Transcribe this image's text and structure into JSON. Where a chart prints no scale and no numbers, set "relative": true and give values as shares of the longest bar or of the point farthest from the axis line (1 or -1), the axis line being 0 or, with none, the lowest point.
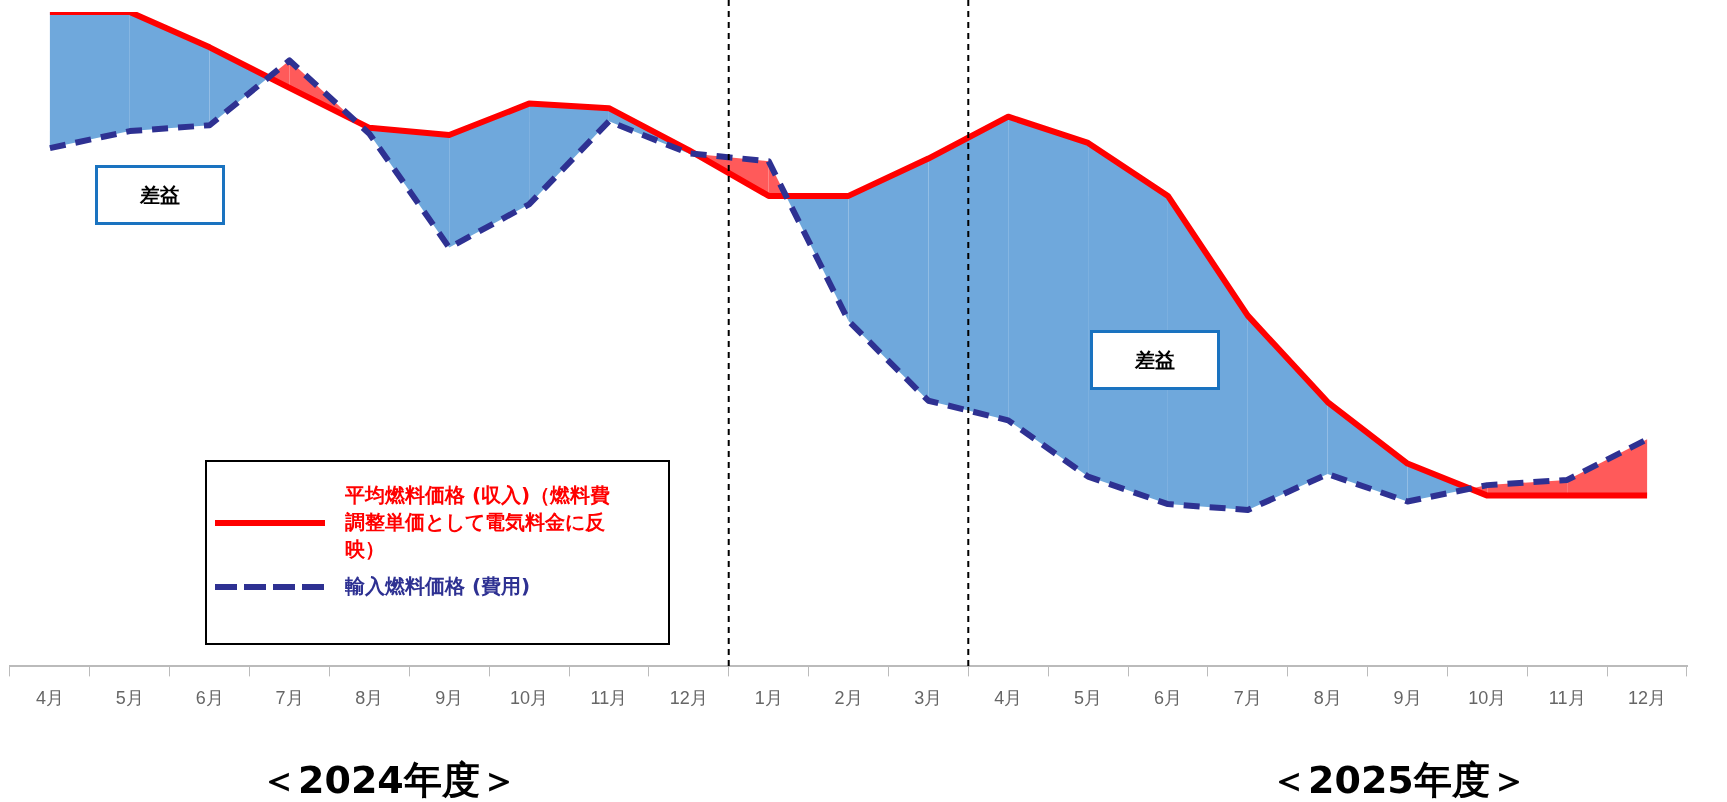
{
  "chart_data": {
    "type": "line",
    "relative": true,
    "categories": [
      "4月",
      "5月",
      "6月",
      "7月",
      "8月",
      "9月",
      "10月",
      "11月",
      "12月",
      "1月",
      "2月",
      "3月",
      "4月",
      "5月",
      "6月",
      "7月",
      "8月",
      "9月",
      "10月",
      "11月",
      "12月"
    ],
    "series": [
      {
        "name": "平均燃料価格 (収入)（燃料費調整単価として電気料金に反映）",
        "color": "#ff0000",
        "line_style": "solid",
        "values": [
          1.0,
          1.0,
          0.946,
          0.884,
          0.823,
          0.812,
          0.86,
          0.853,
          0.789,
          0.719,
          0.719,
          0.776,
          0.84,
          0.8,
          0.719,
          0.536,
          0.404,
          0.31,
          0.261,
          0.261,
          0.261
        ]
      },
      {
        "name": "輸入燃料価格 (費用)",
        "color": "#2e3192",
        "line_style": "dashed",
        "values": [
          0.792,
          0.818,
          0.827,
          0.926,
          0.814,
          0.64,
          0.706,
          0.833,
          0.784,
          0.772,
          0.528,
          0.406,
          0.376,
          0.29,
          0.248,
          0.239,
          0.294,
          0.252,
          0.277,
          0.285,
          0.347
        ]
      }
    ],
    "annotations": [
      "差益",
      "差益",
      "＜2024年度＞",
      "＜2025年度＞"
    ],
    "legend": "bottom left",
    "marker": "none",
    "grid": false
  }
}
